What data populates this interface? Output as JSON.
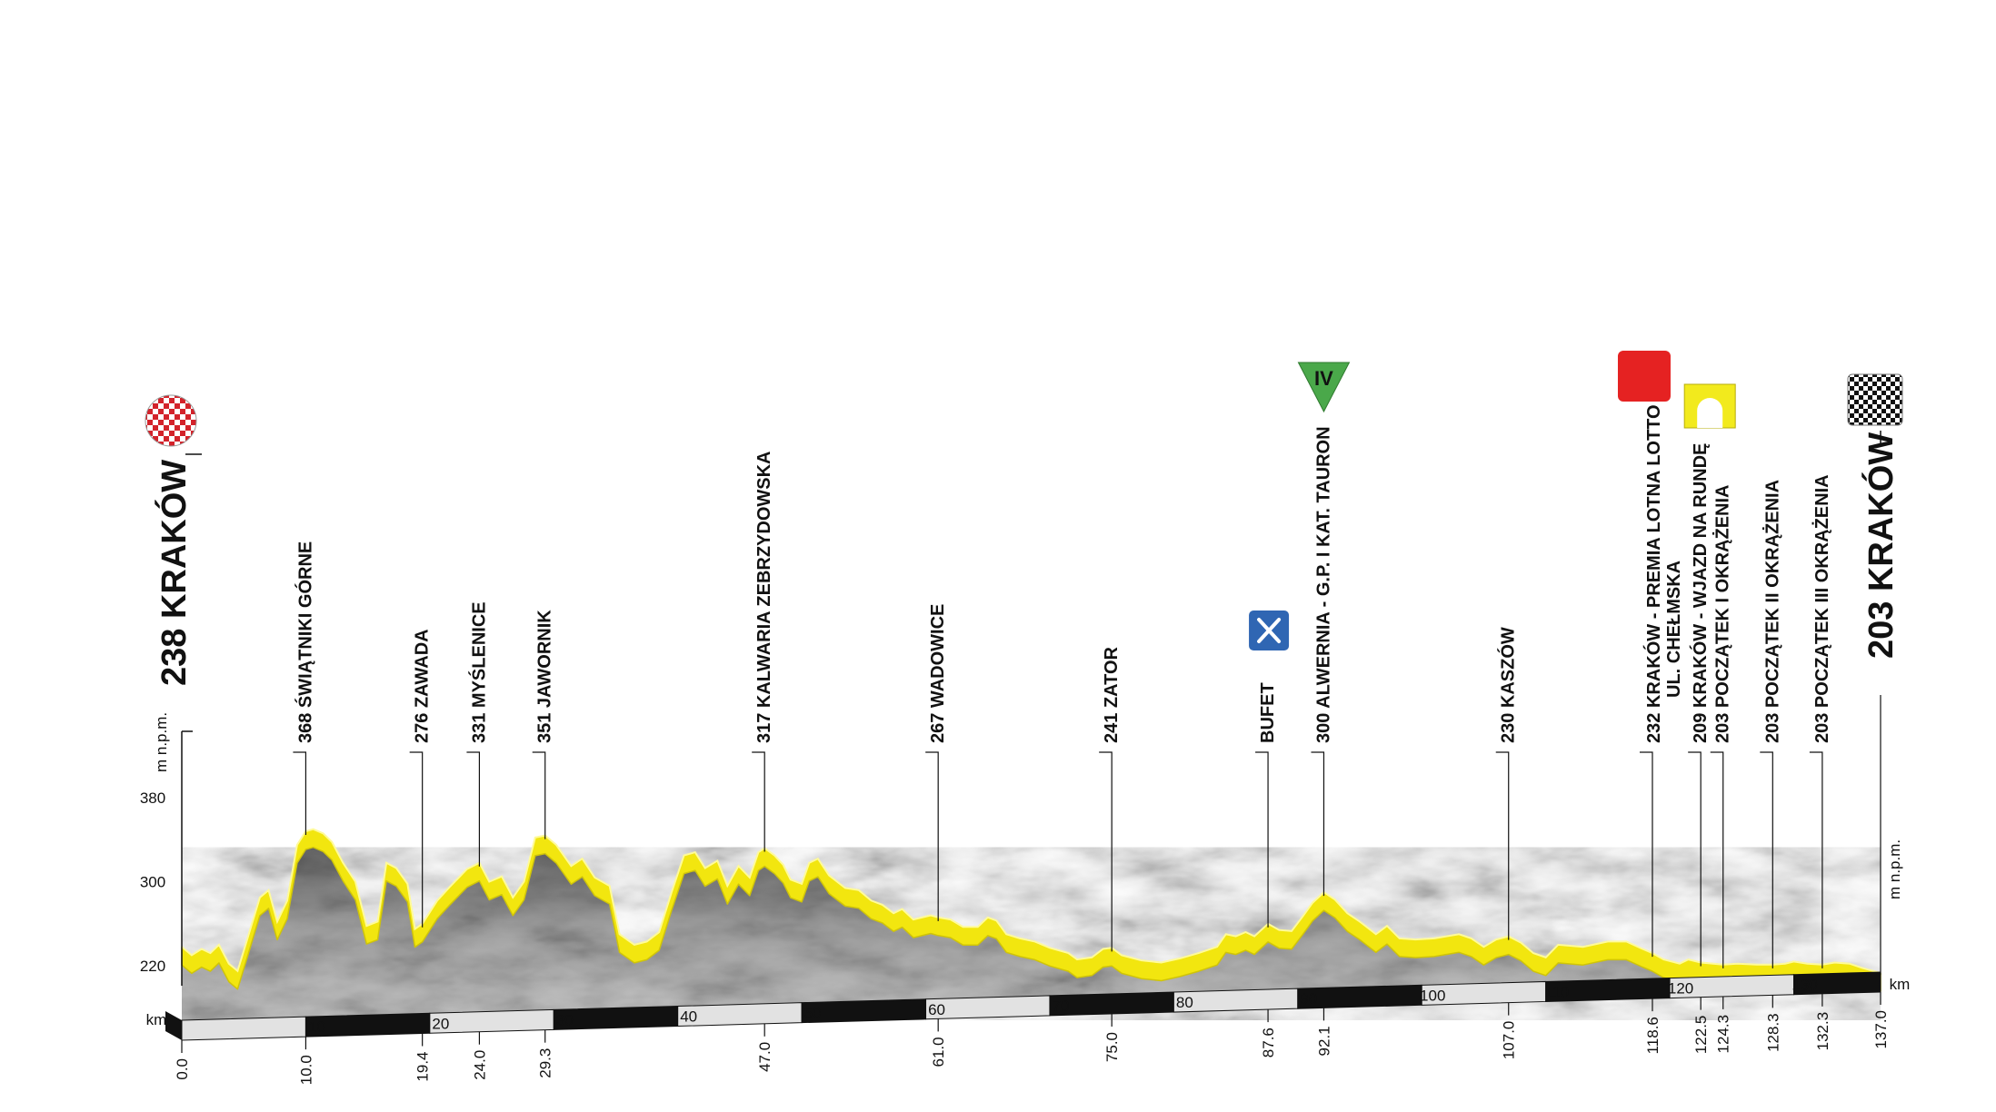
{
  "chart_data": {
    "type": "area",
    "start": {
      "altitude": "238",
      "name": "KRAKÓW"
    },
    "finish": {
      "altitude": "203",
      "name": "KRAKÓW"
    },
    "y_unit": "m n.p.m.",
    "x_unit": "km",
    "ylim": [
      160,
      420
    ],
    "xlim": [
      0,
      137
    ],
    "y_ticks": [
      220,
      300,
      380
    ],
    "x_bar_ticks": [
      10,
      20,
      30,
      40,
      50,
      60,
      70,
      80,
      90,
      100,
      110,
      120,
      130
    ],
    "profile": [
      [
        0,
        238
      ],
      [
        0.8,
        230
      ],
      [
        1.6,
        236
      ],
      [
        2.3,
        232
      ],
      [
        3,
        240
      ],
      [
        3.8,
        222
      ],
      [
        4.5,
        215
      ],
      [
        5.3,
        246
      ],
      [
        6.3,
        285
      ],
      [
        7,
        292
      ],
      [
        7.7,
        262
      ],
      [
        8.5,
        282
      ],
      [
        9.3,
        335
      ],
      [
        10,
        348
      ],
      [
        10.6,
        350
      ],
      [
        11.4,
        346
      ],
      [
        12.1,
        338
      ],
      [
        13,
        318
      ],
      [
        14,
        300
      ],
      [
        14.9,
        258
      ],
      [
        15.8,
        262
      ],
      [
        16.5,
        318
      ],
      [
        17.3,
        313
      ],
      [
        18.2,
        298
      ],
      [
        18.8,
        255
      ],
      [
        19.4,
        260
      ],
      [
        20.6,
        282
      ],
      [
        21.6,
        295
      ],
      [
        23,
        312
      ],
      [
        24,
        318
      ],
      [
        24.8,
        300
      ],
      [
        25.8,
        305
      ],
      [
        26.7,
        285
      ],
      [
        27.6,
        300
      ],
      [
        28.5,
        342
      ],
      [
        29.3,
        344
      ],
      [
        30.2,
        335
      ],
      [
        31.4,
        315
      ],
      [
        32.3,
        322
      ],
      [
        33.3,
        304
      ],
      [
        34.5,
        296
      ],
      [
        35.3,
        250
      ],
      [
        36.5,
        240
      ],
      [
        37.5,
        243
      ],
      [
        38.5,
        252
      ],
      [
        39.5,
        290
      ],
      [
        40.5,
        325
      ],
      [
        41.4,
        328
      ],
      [
        42.2,
        313
      ],
      [
        43.2,
        320
      ],
      [
        44,
        296
      ],
      [
        44.9,
        315
      ],
      [
        45.8,
        304
      ],
      [
        46.5,
        328
      ],
      [
        47,
        332
      ],
      [
        47.8,
        325
      ],
      [
        48.5,
        316
      ],
      [
        49.1,
        302
      ],
      [
        50,
        298
      ],
      [
        50.6,
        318
      ],
      [
        51.3,
        322
      ],
      [
        52.2,
        306
      ],
      [
        53.5,
        294
      ],
      [
        54.6,
        292
      ],
      [
        55.6,
        282
      ],
      [
        56.5,
        278
      ],
      [
        57.4,
        270
      ],
      [
        58.1,
        274
      ],
      [
        59,
        264
      ],
      [
        60.4,
        268
      ],
      [
        61,
        266
      ],
      [
        62,
        264
      ],
      [
        63,
        257
      ],
      [
        64.2,
        257
      ],
      [
        65,
        266
      ],
      [
        65.7,
        263
      ],
      [
        66.5,
        250
      ],
      [
        67.6,
        246
      ],
      [
        68.8,
        243
      ],
      [
        70,
        237
      ],
      [
        71.5,
        232
      ],
      [
        72.2,
        226
      ],
      [
        73.4,
        228
      ],
      [
        74.3,
        236
      ],
      [
        75,
        237
      ],
      [
        75.8,
        230
      ],
      [
        77.4,
        225
      ],
      [
        79,
        223
      ],
      [
        80.5,
        227
      ],
      [
        82,
        232
      ],
      [
        83.5,
        238
      ],
      [
        84.2,
        250
      ],
      [
        85,
        248
      ],
      [
        85.8,
        252
      ],
      [
        86.5,
        248
      ],
      [
        87.6,
        260
      ],
      [
        88.5,
        254
      ],
      [
        89.5,
        253
      ],
      [
        90.4,
        267
      ],
      [
        91.2,
        280
      ],
      [
        92.1,
        290
      ],
      [
        93,
        283
      ],
      [
        94,
        270
      ],
      [
        95,
        262
      ],
      [
        96.3,
        250
      ],
      [
        97.2,
        258
      ],
      [
        98.2,
        246
      ],
      [
        99.5,
        245
      ],
      [
        101,
        246
      ],
      [
        103,
        250
      ],
      [
        104,
        246
      ],
      [
        105,
        238
      ],
      [
        106,
        245
      ],
      [
        107,
        248
      ],
      [
        108,
        242
      ],
      [
        109,
        232
      ],
      [
        110,
        228
      ],
      [
        111,
        240
      ],
      [
        113,
        238
      ],
      [
        115,
        243
      ],
      [
        116.5,
        243
      ],
      [
        117.8,
        236
      ],
      [
        118.6,
        232
      ],
      [
        119.5,
        226
      ],
      [
        120.8,
        222
      ],
      [
        121.5,
        226
      ],
      [
        122.5,
        223
      ],
      [
        123.5,
        222
      ],
      [
        124.3,
        221
      ],
      [
        125.5,
        222
      ],
      [
        127,
        221
      ],
      [
        128.3,
        221
      ],
      [
        129.3,
        222
      ],
      [
        130,
        224
      ],
      [
        131.1,
        222
      ],
      [
        132.3,
        221
      ],
      [
        133.3,
        223
      ],
      [
        134.5,
        222
      ],
      [
        135.5,
        218
      ],
      [
        137,
        213
      ]
    ],
    "places": [
      {
        "km": 0,
        "km_label": "0.0"
      },
      {
        "km": 10,
        "km_label": "10.0",
        "label": "368 ŚWIĄTNIKI GÓRNE"
      },
      {
        "km": 19.4,
        "km_label": "19.4",
        "label": "276 ZAWADA"
      },
      {
        "km": 24,
        "km_label": "24.0",
        "label": "331 MYŚLENICE"
      },
      {
        "km": 29.3,
        "km_label": "29.3",
        "label": "351 JAWORNIK"
      },
      {
        "km": 47,
        "km_label": "47.0",
        "label": "317 KALWARIA ZEBRZYDOWSKA"
      },
      {
        "km": 61,
        "km_label": "61.0",
        "label": "267 WADOWICE"
      },
      {
        "km": 75,
        "km_label": "75.0",
        "label": "241 ZATOR"
      },
      {
        "km": 87.6,
        "km_label": "87.6",
        "label": "BUFET",
        "icon": "bufet"
      },
      {
        "km": 92.1,
        "km_label": "92.1",
        "label": "300 ALWERNIA - G.P. I KAT. TAURON",
        "icon": "mountain-kom",
        "icon_text": "IV"
      },
      {
        "km": 107,
        "km_label": "107.0",
        "label": "230 KASZÓW"
      },
      {
        "km": 118.6,
        "km_label": "118.6",
        "label": "232 KRAKÓW - PREMIA LOTNA LOTTO",
        "label2": "UL. CHEŁMSKA",
        "icon": "sprint"
      },
      {
        "km": 122.5,
        "km_label": "122.5",
        "label": "209 KRAKÓW - WJAZD NA RUNDĘ",
        "icon": "circuit"
      },
      {
        "km": 124.3,
        "km_label": "124.3",
        "label": "203 POCZĄTEK I OKRĄŻENIA"
      },
      {
        "km": 128.3,
        "km_label": "128.3",
        "label": "203 POCZĄTEK II OKRĄŻENIA"
      },
      {
        "km": 132.3,
        "km_label": "132.3",
        "label": "203 POCZĄTEK III OKRĄŻENIA"
      },
      {
        "km": 137,
        "km_label": "137.0"
      }
    ],
    "colors": {
      "road_top": "#f2e60f",
      "road_top_dark": "#cfc409",
      "rock": "#8e8e8e",
      "rock_dark": "#5e5e5e",
      "kom_green": "#4aa84a",
      "sprint_red": "#e52222",
      "circuit_yellow": "#f2ea1d",
      "bufet_blue": "#2f66b3"
    }
  }
}
